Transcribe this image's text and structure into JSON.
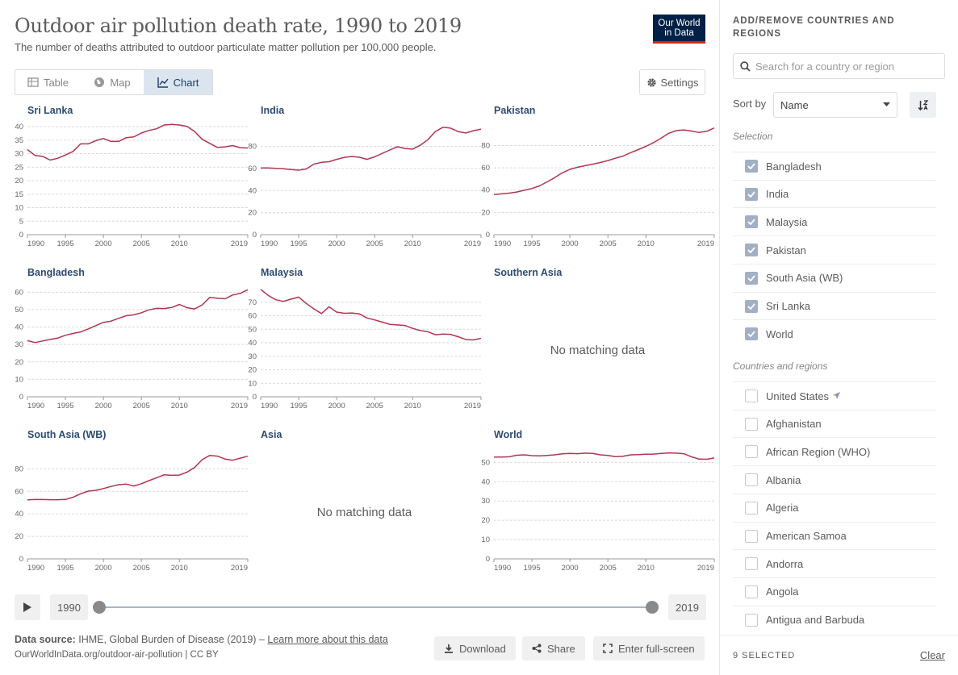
{
  "header": {
    "title": "Outdoor air pollution death rate, 1990 to 2019",
    "subtitle": "The number of deaths attributed to outdoor particulate matter pollution per 100,000 people.",
    "logo_line1": "Our World",
    "logo_line2": "in Data"
  },
  "tabs": [
    {
      "label": "Table",
      "icon": "table-icon",
      "active": false
    },
    {
      "label": "Map",
      "icon": "globe-icon",
      "active": false
    },
    {
      "label": "Chart",
      "icon": "line-chart-icon",
      "active": true
    }
  ],
  "settings_label": "Settings",
  "colors": {
    "series": "#b13550",
    "title": "#2d4b73"
  },
  "no_data_text": "No matching data",
  "chart_data": [
    {
      "type": "line",
      "title": "Sri Lanka",
      "x": [
        1990,
        1991,
        1992,
        1993,
        1994,
        1995,
        1996,
        1997,
        1998,
        1999,
        2000,
        2001,
        2002,
        2003,
        2004,
        2005,
        2006,
        2007,
        2008,
        2009,
        2010,
        2011,
        2012,
        2013,
        2014,
        2015,
        2016,
        2017,
        2018,
        2019
      ],
      "values": [
        31.5,
        29.3,
        29,
        27.6,
        28.3,
        29.5,
        30.8,
        33.6,
        33.6,
        34.8,
        35.6,
        34.5,
        34.5,
        35.9,
        36.2,
        37.6,
        38.6,
        39.2,
        40.6,
        40.8,
        40.6,
        40.1,
        38.2,
        35.3,
        33.8,
        32.3,
        32.5,
        33,
        32.2,
        32.1
      ],
      "yticks": [
        0,
        5,
        10,
        15,
        20,
        25,
        30,
        35,
        40
      ],
      "ylim": [
        0,
        40
      ],
      "xticks": [
        1990,
        1995,
        2000,
        2005,
        2010,
        2019
      ]
    },
    {
      "type": "line",
      "title": "India",
      "x": [
        1990,
        1991,
        1992,
        1993,
        1994,
        1995,
        1996,
        1997,
        1998,
        1999,
        2000,
        2001,
        2002,
        2003,
        2004,
        2005,
        2006,
        2007,
        2008,
        2009,
        2010,
        2011,
        2012,
        2013,
        2014,
        2015,
        2016,
        2017,
        2018,
        2019
      ],
      "values": [
        60.5,
        60.5,
        60.2,
        59.8,
        59.1,
        58.5,
        59.6,
        64,
        65.6,
        66.2,
        68.3,
        70.1,
        70.9,
        70.2,
        68.3,
        70.6,
        73.7,
        76.8,
        79.7,
        78.2,
        77.6,
        81.1,
        86.1,
        93.6,
        97.4,
        96.6,
        93.5,
        92.2,
        94.3,
        95.7
      ],
      "yticks": [
        0,
        20,
        40,
        60,
        80
      ],
      "ylim": [
        0,
        98
      ],
      "xticks": [
        1990,
        1995,
        2000,
        2005,
        2010,
        2019
      ]
    },
    {
      "type": "line",
      "title": "Pakistan",
      "x": [
        1990,
        1991,
        1992,
        1993,
        1994,
        1995,
        1996,
        1997,
        1998,
        1999,
        2000,
        2001,
        2002,
        2003,
        2004,
        2005,
        2006,
        2007,
        2008,
        2009,
        2010,
        2011,
        2012,
        2013,
        2014,
        2015,
        2016,
        2017,
        2018,
        2019
      ],
      "values": [
        36,
        36.6,
        37.3,
        38.3,
        39.9,
        41.5,
        43.8,
        47.4,
        51.2,
        55.5,
        58.6,
        60.5,
        62,
        63.3,
        64.8,
        66.5,
        68.6,
        70.6,
        73.6,
        76.4,
        79.3,
        82.6,
        86.6,
        91,
        93.4,
        94,
        93,
        91.7,
        92.8,
        95.8
      ],
      "yticks": [
        0,
        20,
        40,
        60,
        80
      ],
      "ylim": [
        0,
        97
      ],
      "xticks": [
        1990,
        1995,
        2000,
        2005,
        2010,
        2019
      ]
    },
    {
      "type": "line",
      "title": "Bangladesh",
      "x": [
        1990,
        1991,
        1992,
        1993,
        1994,
        1995,
        1996,
        1997,
        1998,
        1999,
        2000,
        2001,
        2002,
        2003,
        2004,
        2005,
        2006,
        2007,
        2008,
        2009,
        2010,
        2011,
        2012,
        2013,
        2014,
        2015,
        2016,
        2017,
        2018,
        2019
      ],
      "values": [
        32.2,
        31.1,
        32,
        32.9,
        33.7,
        35.3,
        36.3,
        37.2,
        38.9,
        40.8,
        42.7,
        43.4,
        45,
        46.5,
        47,
        48.2,
        49.9,
        50.7,
        50.6,
        51.2,
        53,
        51.1,
        50.4,
        52.7,
        57,
        56.6,
        56.2,
        58.4,
        59.3,
        61.4
      ],
      "yticks": [
        0,
        10,
        20,
        30,
        40,
        50,
        60
      ],
      "ylim": [
        0,
        62
      ],
      "xticks": [
        1990,
        1995,
        2000,
        2005,
        2010,
        2019
      ]
    },
    {
      "type": "line",
      "title": "Malaysia",
      "x": [
        1990,
        1991,
        1992,
        1993,
        1994,
        1995,
        1996,
        1997,
        1998,
        1999,
        2000,
        2001,
        2002,
        2003,
        2004,
        2005,
        2006,
        2007,
        2008,
        2009,
        2010,
        2011,
        2012,
        2013,
        2014,
        2015,
        2016,
        2017,
        2018,
        2019
      ],
      "values": [
        79.5,
        75,
        71.8,
        70.6,
        72.3,
        73.8,
        69.1,
        65.1,
        61.6,
        66.6,
        62.7,
        61.8,
        62,
        61.3,
        58.3,
        56.9,
        55.3,
        53.6,
        53.2,
        52.8,
        50.6,
        49,
        48.2,
        45.9,
        46.4,
        46.2,
        44.4,
        42.3,
        42.1,
        43.3
      ],
      "yticks": [
        0,
        10,
        20,
        30,
        40,
        50,
        60,
        70
      ],
      "ylim": [
        0,
        80
      ],
      "xticks": [
        1990,
        1995,
        2000,
        2005,
        2010,
        2019
      ]
    },
    {
      "type": "line",
      "title": "Southern Asia",
      "no_data": true
    },
    {
      "type": "line",
      "title": "South Asia (WB)",
      "x": [
        1990,
        1991,
        1992,
        1993,
        1994,
        1995,
        1996,
        1997,
        1998,
        1999,
        2000,
        2001,
        2002,
        2003,
        2004,
        2005,
        2006,
        2007,
        2008,
        2009,
        2010,
        2011,
        2012,
        2013,
        2014,
        2015,
        2016,
        2017,
        2018,
        2019
      ],
      "values": [
        52.5,
        52.7,
        52.7,
        52.6,
        52.6,
        52.8,
        54.7,
        57.8,
        60.2,
        60.9,
        62.5,
        64.3,
        65.9,
        66.4,
        64.8,
        66.8,
        69.5,
        72.1,
        74.7,
        74.2,
        74.4,
        77,
        81.2,
        88.1,
        91.9,
        91.3,
        88.7,
        87.6,
        89.5,
        91.2
      ],
      "yticks": [
        0,
        20,
        40,
        60,
        80
      ],
      "ylim": [
        0,
        96
      ],
      "xticks": [
        1990,
        1995,
        2000,
        2005,
        2010,
        2019
      ]
    },
    {
      "type": "line",
      "title": "Asia",
      "no_data": true
    },
    {
      "type": "line",
      "title": "World",
      "x": [
        1990,
        1991,
        1992,
        1993,
        1994,
        1995,
        1996,
        1997,
        1998,
        1999,
        2000,
        2001,
        2002,
        2003,
        2004,
        2005,
        2006,
        2007,
        2008,
        2009,
        2010,
        2011,
        2012,
        2013,
        2014,
        2015,
        2016,
        2017,
        2018,
        2019
      ],
      "values": [
        52.8,
        52.8,
        52.9,
        53.7,
        53.9,
        53.5,
        53.4,
        53.6,
        53.9,
        54.4,
        54.6,
        54.5,
        54.8,
        54.6,
        53.9,
        53.6,
        53,
        53.2,
        53.9,
        54,
        54.2,
        54.3,
        54.6,
        54.9,
        54.8,
        54.5,
        52.9,
        51.7,
        51.6,
        52.3
      ],
      "yticks": [
        0,
        10,
        20,
        30,
        40,
        50
      ],
      "ylim": [
        0,
        56
      ],
      "xticks": [
        1990,
        1995,
        2000,
        2005,
        2010,
        2019
      ]
    }
  ],
  "timeline": {
    "start_label": "1990",
    "end_label": "2019",
    "start_year": 1990,
    "end_year": 2019
  },
  "footer": {
    "source_prefix": "Data source:",
    "source_text": "IHME, Global Burden of Disease (2019) – ",
    "learn_more": "Learn more about this data",
    "url": "OurWorldInData.org/outdoor-air-pollution | CC BY",
    "download_label": "Download",
    "share_label": "Share",
    "fullscreen_label": "Enter full-screen"
  },
  "sidebar": {
    "heading": "ADD/REMOVE COUNTRIES AND REGIONS",
    "search_placeholder": "Search for a country or region",
    "sort_label": "Sort by",
    "sort_value": "Name",
    "selection_label": "Selection",
    "selected": [
      "Bangladesh",
      "India",
      "Malaysia",
      "Pakistan",
      "South Asia (WB)",
      "Sri Lanka",
      "World"
    ],
    "regions_label": "Countries and regions",
    "regions": [
      "United States",
      "Afghanistan",
      "African Region (WHO)",
      "Albania",
      "Algeria",
      "American Samoa",
      "Andorra",
      "Angola",
      "Antigua and Barbuda"
    ],
    "selected_count": "9 SELECTED",
    "clear_label": "Clear"
  }
}
